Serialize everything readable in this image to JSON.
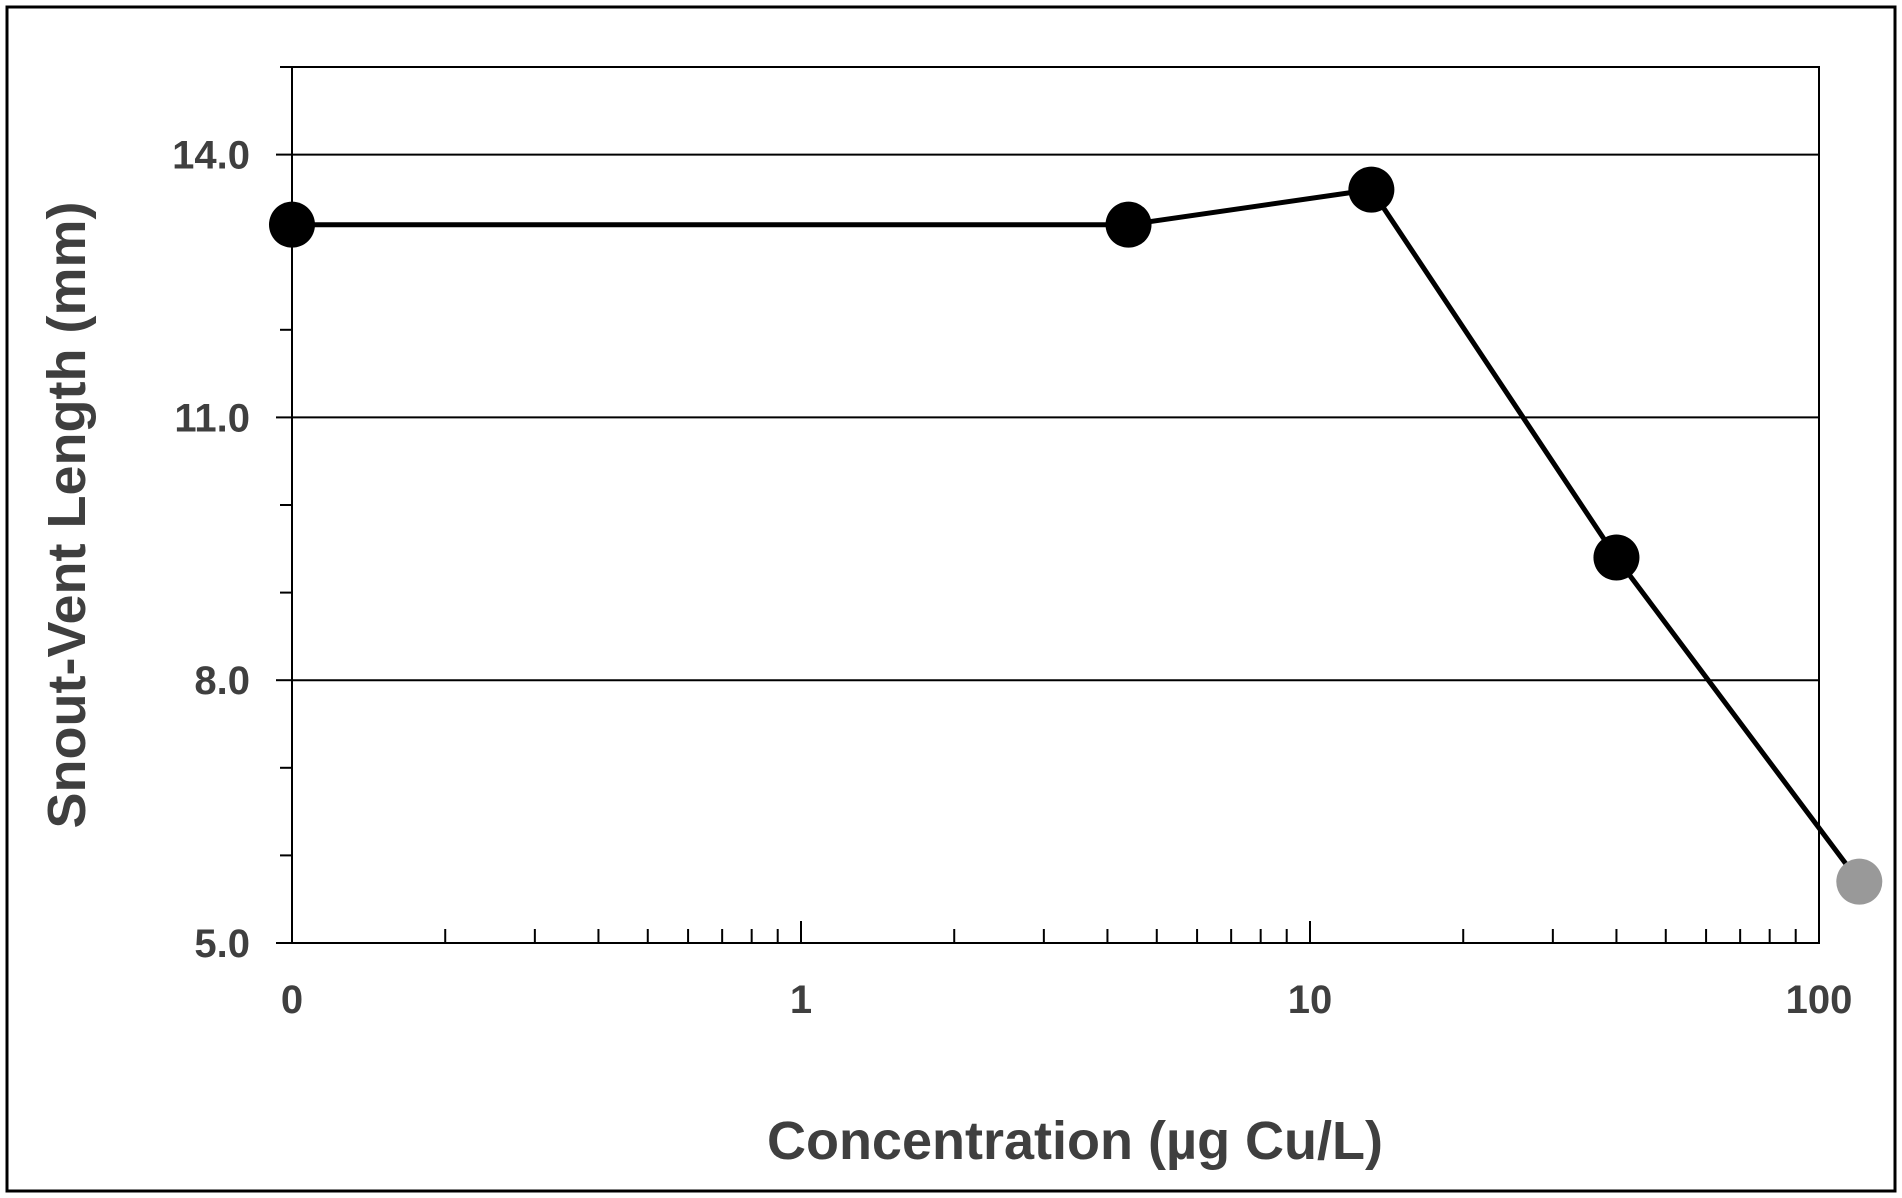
{
  "chart_data": {
    "type": "line",
    "title": "",
    "xlabel": "Concentration (µg Cu/L)",
    "ylabel": "Snout-Vent Length (mm)",
    "x_scale": "log",
    "xlim": [
      0.1,
      100
    ],
    "ylim": [
      5.0,
      15.0
    ],
    "x_ticks": [
      {
        "value": 0.1,
        "label": "0"
      },
      {
        "value": 1,
        "label": "1"
      },
      {
        "value": 10,
        "label": "10"
      },
      {
        "value": 100,
        "label": "100"
      }
    ],
    "y_ticks": [
      {
        "value": 5.0,
        "label": "5.0"
      },
      {
        "value": 8.0,
        "label": "8.0"
      },
      {
        "value": 11.0,
        "label": "11.0"
      },
      {
        "value": 14.0,
        "label": "14.0"
      }
    ],
    "y_gridlines": [
      8.0,
      11.0,
      14.0
    ],
    "grid": true,
    "legend": "none",
    "series": [
      {
        "points": [
          {
            "label": "0",
            "x": 0.1,
            "y": 13.2,
            "color": "#000000"
          },
          {
            "x": 4.4,
            "y": 13.2,
            "color": "#000000"
          },
          {
            "x": 13.2,
            "y": 13.6,
            "color": "#000000"
          },
          {
            "x": 40,
            "y": 9.4,
            "color": "#000000"
          },
          {
            "x": 120,
            "y": 5.7,
            "color": "#999999"
          }
        ],
        "line_color": "#000000"
      }
    ]
  }
}
